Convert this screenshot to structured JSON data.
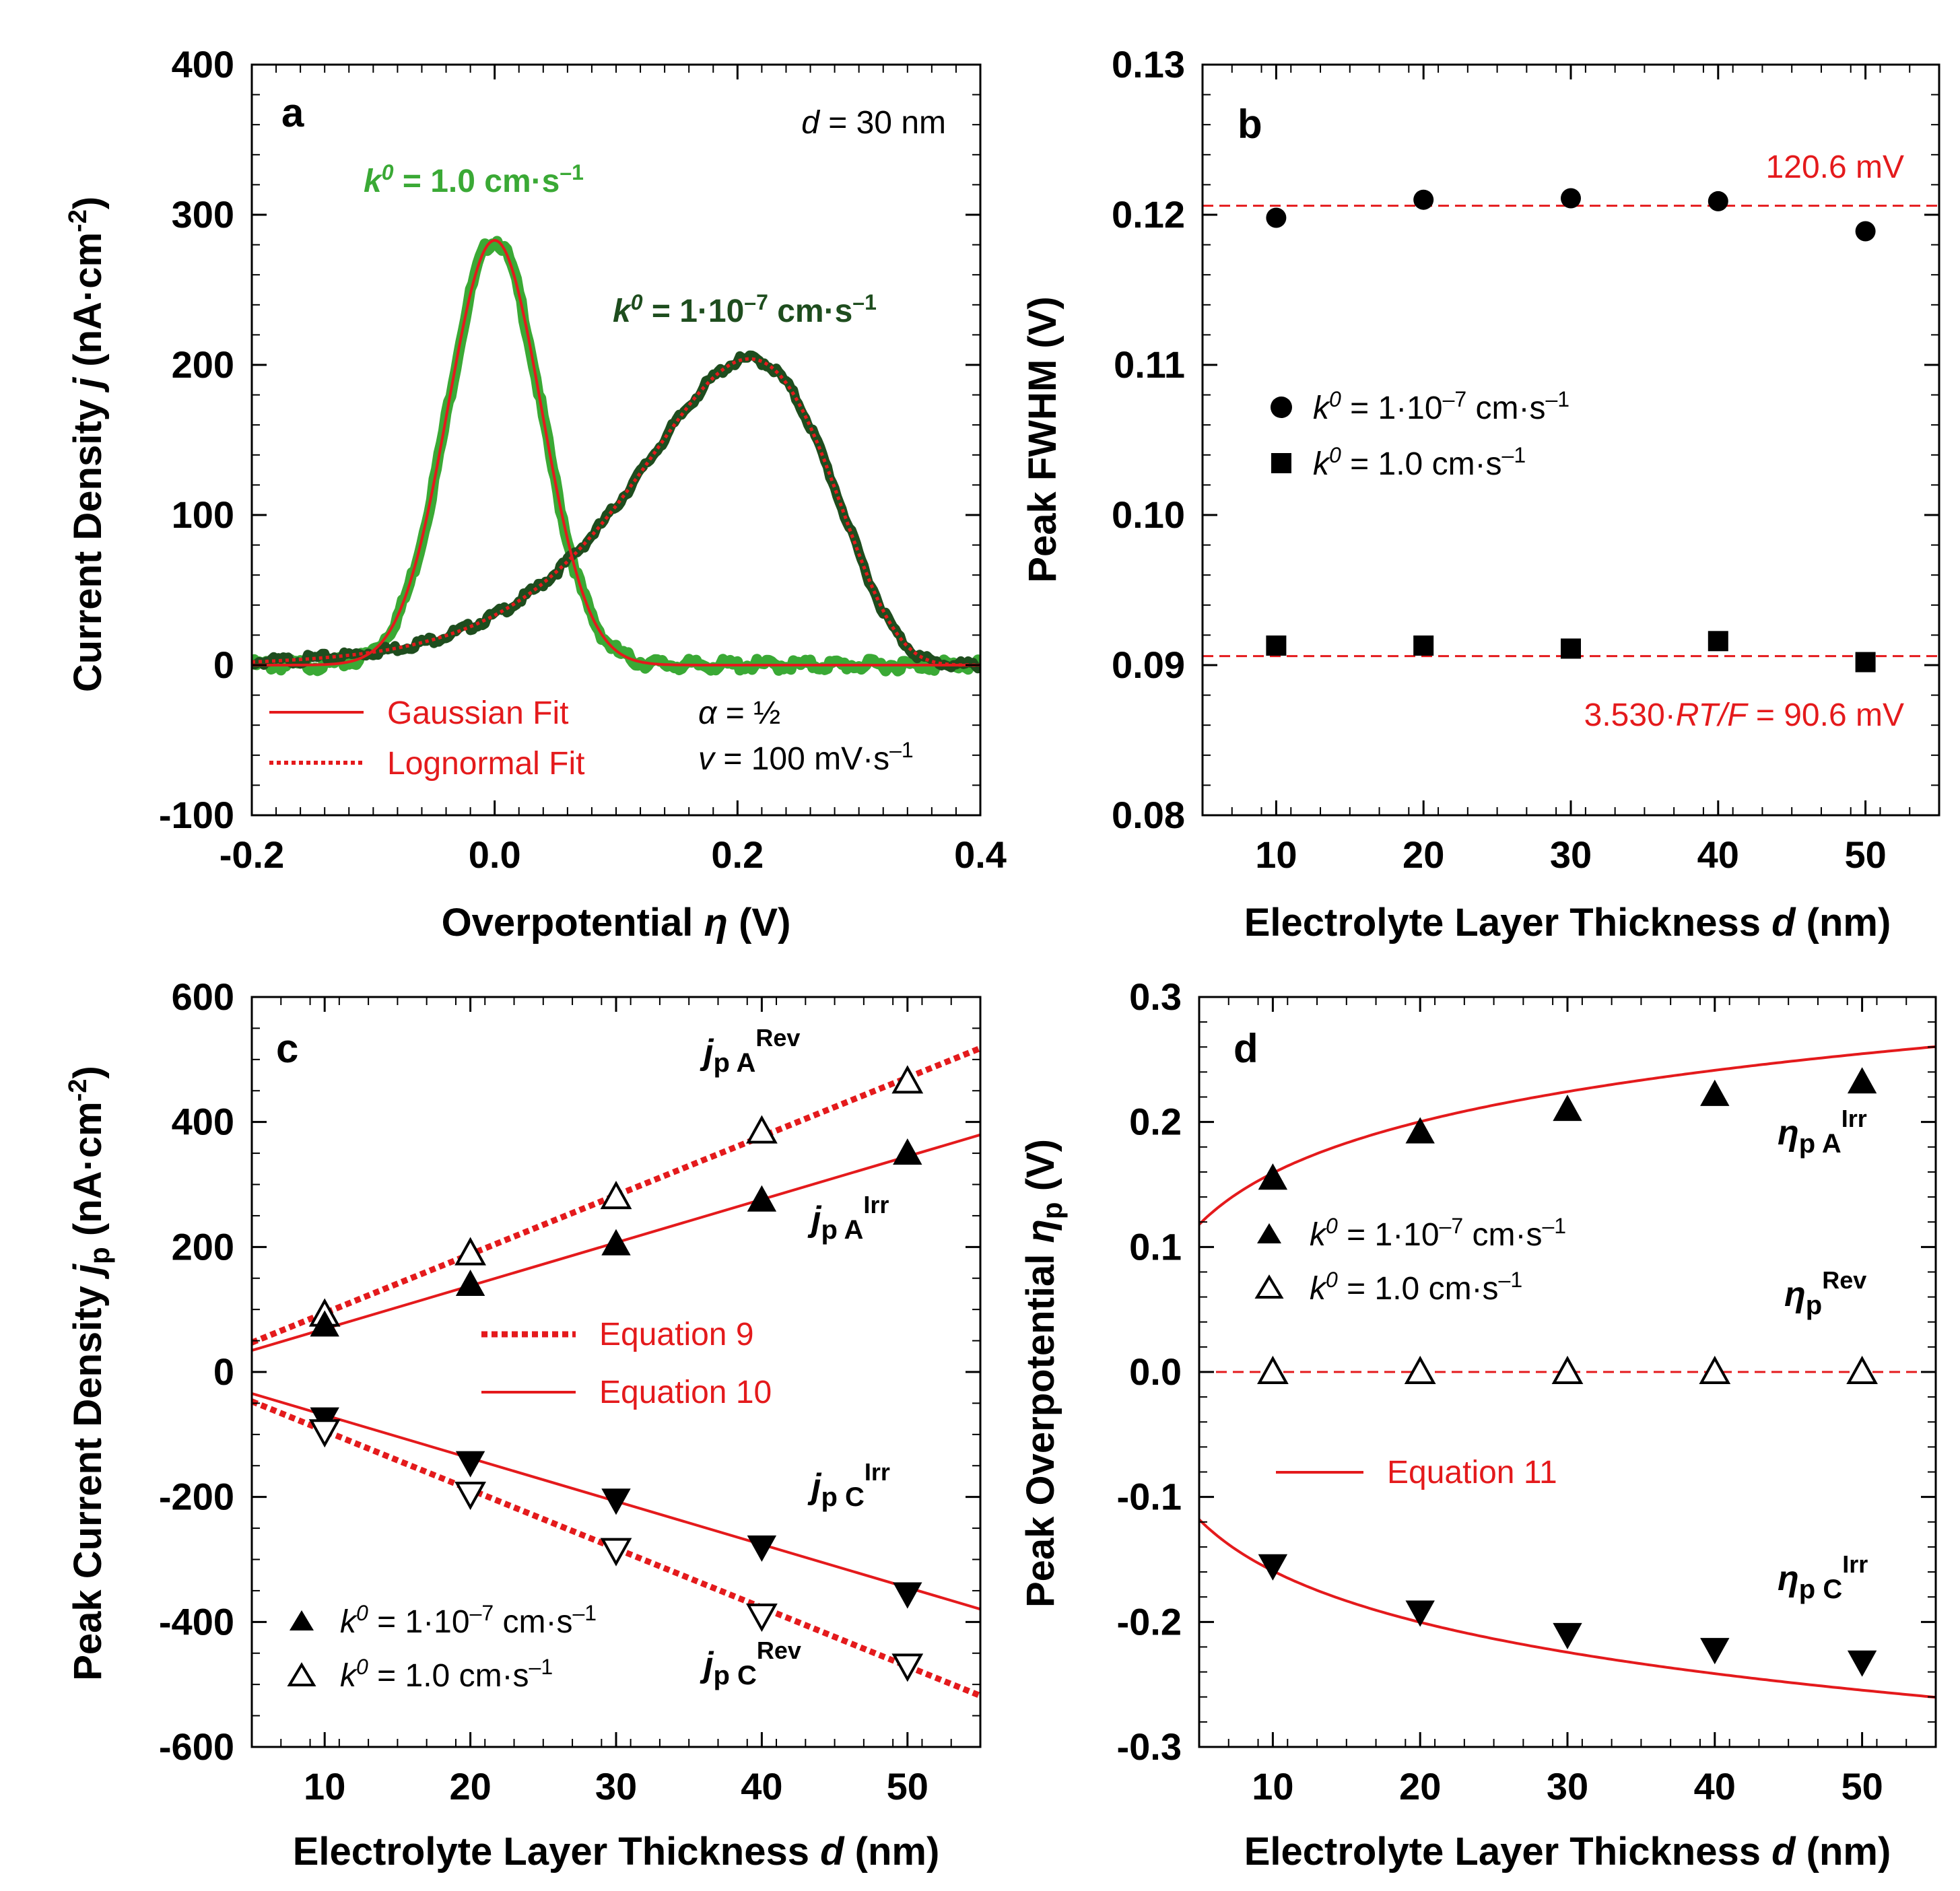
{
  "colors": {
    "red": "#e41a1c",
    "green_bright": "#3aa935",
    "green_dark": "#1e4d1e",
    "black": "#000000"
  },
  "chart_data": [
    {
      "panel": "a",
      "type": "line",
      "panel_letter": "a",
      "xlabel_main": "Overpotential ",
      "xlabel_symbol": "η",
      "xlabel_unit": " (V)",
      "ylabel_main": "Current Density ",
      "ylabel_symbol": "j",
      "ylabel_unit": " (nA·cm",
      "ylabel_exp": "-2",
      "ylabel_close": ")",
      "xlim": [
        -0.2,
        0.4
      ],
      "ylim": [
        -100,
        400
      ],
      "xticks": [
        -0.2,
        0.0,
        0.2,
        0.4
      ],
      "xtick_labels": [
        "-0.2",
        "0.0",
        "0.2",
        "0.4"
      ],
      "yticks": [
        -100,
        0,
        100,
        200,
        300,
        400
      ],
      "ytick_labels": [
        "-100",
        "0",
        "100",
        "200",
        "300",
        "400"
      ],
      "series": [
        {
          "name": "k0 = 1.0 cm·s–1",
          "label_k": "k",
          "label_sup": "0",
          "label_rest": " = 1.0 cm·s",
          "label_exp": "–1",
          "kind": "gaussian",
          "center": 0.0,
          "peak": 283,
          "fwhm": 0.0906,
          "color": "#3aa935"
        },
        {
          "name": "k0 = 1·10–7 cm·s–1",
          "label_k": "k",
          "label_sup": "0",
          "label_rest": " = 1·10",
          "label_exp1": "–7",
          "label_rest2": " cm·s",
          "label_exp2": "–1",
          "kind": "lognormal",
          "center": 0.21,
          "peak": 204,
          "fwhm": 0.1206,
          "color": "#1e4d1e"
        }
      ],
      "annotations": {
        "d_sym": "d",
        "d_text": " = 30 nm",
        "alpha_sym": "α",
        "alpha_text": " = ½",
        "v_sym": "v",
        "v_text": " = 100 mV·s",
        "v_exp": "–1"
      },
      "legend": [
        "Gaussian Fit",
        "Lognormal Fit"
      ]
    },
    {
      "panel": "b",
      "type": "scatter",
      "panel_letter": "b",
      "xlabel_main": "Electrolyte Layer Thickness ",
      "xlabel_symbol": "d",
      "xlabel_unit": " (nm)",
      "ylabel": "Peak FWHM (V)",
      "xlim": [
        5,
        55
      ],
      "ylim": [
        0.08,
        0.13
      ],
      "xticks": [
        10,
        20,
        30,
        40,
        50
      ],
      "xtick_labels": [
        "10",
        "20",
        "30",
        "40",
        "50"
      ],
      "yticks": [
        0.08,
        0.09,
        0.1,
        0.11,
        0.12,
        0.13
      ],
      "ytick_labels": [
        "0.08",
        "0.09",
        "0.10",
        "0.11",
        "0.12",
        "0.13"
      ],
      "x": [
        10,
        20,
        30,
        40,
        50
      ],
      "series": [
        {
          "name": "k0 = 1·10–7 cm·s–1",
          "marker": "circle",
          "values": [
            0.1198,
            0.121,
            0.1211,
            0.1209,
            0.1189
          ]
        },
        {
          "name": "k0 = 1.0 cm·s–1",
          "marker": "square",
          "values": [
            0.0913,
            0.0913,
            0.0911,
            0.0916,
            0.0902
          ]
        }
      ],
      "reference_lines": [
        {
          "value": 0.1206,
          "label": "120.6 mV"
        },
        {
          "value": 0.0906,
          "label_pre": "3.530·",
          "label_sym": "RT/F",
          "label_post": " = 90.6 mV"
        }
      ]
    },
    {
      "panel": "c",
      "type": "scatter",
      "panel_letter": "c",
      "xlabel_main": "Electrolyte Layer Thickness ",
      "xlabel_symbol": "d",
      "xlabel_unit": " (nm)",
      "ylabel_main": "Peak Current Density ",
      "ylabel_symbol": "j",
      "ylabel_sub": "p",
      "ylabel_unit": " (nA·cm",
      "ylabel_exp": "-2",
      "ylabel_close": ")",
      "xlim": [
        5,
        55
      ],
      "ylim": [
        -600,
        600
      ],
      "xticks": [
        10,
        20,
        30,
        40,
        50
      ],
      "xtick_labels": [
        "10",
        "20",
        "30",
        "40",
        "50"
      ],
      "yticks": [
        -600,
        -400,
        -200,
        0,
        200,
        400,
        600
      ],
      "ytick_labels": [
        "-600",
        "-400",
        "-200",
        "0",
        "200",
        "400",
        "600"
      ],
      "x": [
        10,
        20,
        30,
        40,
        50
      ],
      "series": [
        {
          "name": "jp A Rev",
          "marker": "open-up",
          "values": [
            92,
            190,
            280,
            385,
            465
          ]
        },
        {
          "name": "jp A Irr",
          "marker": "filled-up",
          "values": [
            75,
            140,
            205,
            275,
            350
          ]
        },
        {
          "name": "jp C Irr",
          "marker": "filled-down",
          "values": [
            -75,
            -145,
            -205,
            -280,
            -355
          ]
        },
        {
          "name": "jp C Rev",
          "marker": "open-down",
          "values": [
            -95,
            -195,
            -285,
            -390,
            -470
          ]
        }
      ],
      "fit_lines": [
        {
          "name": "Equation 9",
          "slope": 9.42,
          "intercept": 0,
          "style": "dotted"
        },
        {
          "name": "Equation 9",
          "slope": -9.42,
          "intercept": 0,
          "style": "dotted"
        },
        {
          "name": "Equation 10",
          "slope": 6.9,
          "intercept": 0,
          "style": "solid"
        },
        {
          "name": "Equation 10",
          "slope": -6.9,
          "intercept": 0,
          "style": "solid"
        }
      ],
      "series_labels": [
        {
          "main": "j",
          "sub": "p A",
          "sup": "Rev"
        },
        {
          "main": "j",
          "sub": "p A",
          "sup": "Irr"
        },
        {
          "main": "j",
          "sub": "p C",
          "sup": "Irr"
        },
        {
          "main": "j",
          "sub": "p C",
          "sup": "Rev"
        }
      ],
      "legend_fits": [
        "Equation 9",
        "Equation 10"
      ],
      "legend_markers": [
        {
          "k": "k",
          "sup": "0",
          "rest": " = 1·10",
          "exp1": "–7",
          "rest2": " cm·s",
          "exp2": "–1"
        },
        {
          "k": "k",
          "sup": "0",
          "rest": " = 1.0 cm·s",
          "exp1": "–1"
        }
      ]
    },
    {
      "panel": "d",
      "type": "scatter",
      "panel_letter": "d",
      "xlabel_main": "Electrolyte Layer Thickness ",
      "xlabel_symbol": "d",
      "xlabel_unit": " (nm)",
      "ylabel_main": "Peak Overpotential ",
      "ylabel_symbol": "η",
      "ylabel_sub": "p",
      "ylabel_unit": " (V)",
      "xlim": [
        5,
        55
      ],
      "ylim": [
        -0.3,
        0.3
      ],
      "xticks": [
        10,
        20,
        30,
        40,
        50
      ],
      "xtick_labels": [
        "10",
        "20",
        "30",
        "40",
        "50"
      ],
      "yticks": [
        -0.3,
        -0.2,
        -0.1,
        0.0,
        0.1,
        0.2,
        0.3
      ],
      "ytick_labels": [
        "-0.3",
        "-0.2",
        "-0.1",
        "0.0",
        "0.1",
        "0.2",
        "0.3"
      ],
      "x": [
        10,
        20,
        30,
        40,
        50
      ],
      "series": [
        {
          "name": "ηp A Irr",
          "marker": "filled-up",
          "values": [
            0.155,
            0.192,
            0.21,
            0.222,
            0.232
          ]
        },
        {
          "name": "ηp Rev",
          "marker": "open-up",
          "values": [
            0.0,
            0.0,
            0.0,
            0.0,
            0.0
          ]
        },
        {
          "name": "ηp C Irr",
          "marker": "filled-down",
          "values": [
            -0.155,
            -0.192,
            -0.21,
            -0.222,
            -0.232
          ]
        }
      ],
      "fit_curves": [
        {
          "name": "Equation 11",
          "sign": 1,
          "a": 0.0593,
          "b": 0.0226
        },
        {
          "name": "Equation 11",
          "sign": -1,
          "a": 0.0593,
          "b": 0.0226
        }
      ],
      "series_labels": [
        {
          "main": "η",
          "sub": "p A",
          "sup": "Irr"
        },
        {
          "main": "η",
          "sub": "p",
          "sup": "Rev"
        },
        {
          "main": "η",
          "sub": "p C",
          "sup": "Irr"
        }
      ],
      "legend_fit": "Equation 11",
      "legend_markers": [
        {
          "k": "k",
          "sup": "0",
          "rest": " = 1·10",
          "exp1": "–7",
          "rest2": " cm·s",
          "exp2": "–1"
        },
        {
          "k": "k",
          "sup": "0",
          "rest": " = 1.0 cm·s",
          "exp1": "–1"
        }
      ]
    }
  ]
}
